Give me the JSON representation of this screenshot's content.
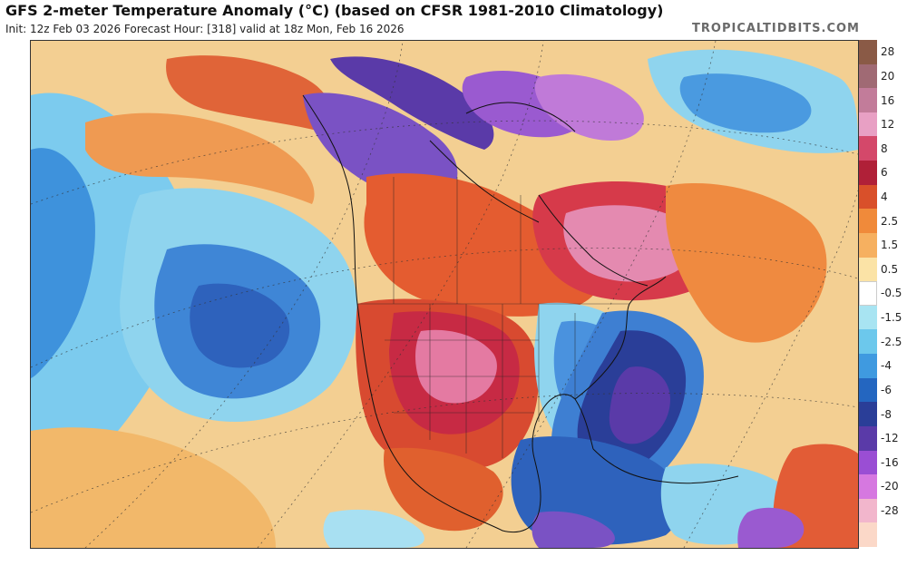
{
  "header": {
    "title": "GFS 2-meter Temperature Anomaly (°C) (based on CFSR 1981-2010 Climatology)",
    "subtitle": "Init: 12z Feb 03 2026   Forecast Hour: [318]   valid at 18z Mon, Feb 16 2026",
    "brand": "TROPICALTIDBITS.COM"
  },
  "legend": {
    "entries": [
      {
        "label": "28",
        "color": "#8a5a46"
      },
      {
        "label": "20",
        "color": "#a06a74"
      },
      {
        "label": "16",
        "color": "#c27c9a"
      },
      {
        "label": "12",
        "color": "#e8a0c4"
      },
      {
        "label": "8",
        "color": "#d4486a"
      },
      {
        "label": "6",
        "color": "#b02038"
      },
      {
        "label": "4",
        "color": "#d9502a"
      },
      {
        "label": "2.5",
        "color": "#f08a3a"
      },
      {
        "label": "1.5",
        "color": "#f6b060"
      },
      {
        "label": "0.5",
        "color": "#fbe3a6"
      },
      {
        "label": "-0.5",
        "color": "#ffffff"
      },
      {
        "label": "-1.5",
        "color": "#a8e4f2"
      },
      {
        "label": "-2.5",
        "color": "#6cc8ec"
      },
      {
        "label": "-4",
        "color": "#3f9ae0"
      },
      {
        "label": "-6",
        "color": "#2466c0"
      },
      {
        "label": "-8",
        "color": "#2a3e98"
      },
      {
        "label": "-12",
        "color": "#5a3aa8"
      },
      {
        "label": "-16",
        "color": "#9a4ed4"
      },
      {
        "label": "-20",
        "color": "#d678e0"
      },
      {
        "label": "-28",
        "color": "#f2b6cc"
      },
      {
        "label": "",
        "color": "#fbd8c8"
      }
    ]
  },
  "map": {
    "colors": {
      "ocean_warm": "#f2c98a",
      "warm_orange": "#ee8c42",
      "hot_red": "#d44a2c",
      "very_hot": "#c02a40",
      "pink": "#e27aa0",
      "cool_light": "#8fd4ee",
      "cool": "#4aa2e2",
      "cold": "#2e6cc4",
      "very_cold": "#2a3c9a",
      "purple": "#6a44b4",
      "violet": "#9a5ad0"
    }
  }
}
